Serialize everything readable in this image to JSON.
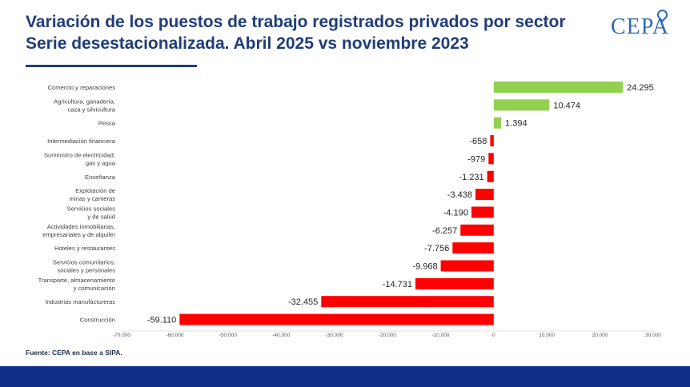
{
  "header": {
    "title_line1": "Variación de los puestos de trabajo registrados privados por sector",
    "title_line2": "Serie desestacionalizada. Abril 2025 vs noviembre 2023",
    "logo_text": "CEPA"
  },
  "footer": {
    "source": "Fuente: CEPA en base a SIPA."
  },
  "colors": {
    "positive": "#92d050",
    "negative": "#ff0000",
    "title": "#1f3d7a",
    "footer_bar": "#0f2f88"
  },
  "chart_data": {
    "type": "bar",
    "orientation": "horizontal",
    "title": "Variación de los puestos de trabajo registrados privados por sector",
    "subtitle": "Serie desestacionalizada. Abril 2025 vs noviembre 2023",
    "categories": [
      [
        "Comercio y reparaciones"
      ],
      [
        "Agricultura, ganadería,",
        "caza y silvicultura"
      ],
      [
        "Pesca"
      ],
      [
        "Intermediación financiera"
      ],
      [
        "Suministro de electricidad,",
        "gas y agua"
      ],
      [
        "Enseñanza"
      ],
      [
        "Explotación de",
        "minas y canteras"
      ],
      [
        "Servicios sociales",
        "y de salud"
      ],
      [
        "Actividades inmobiliarias,",
        "empresariales y de alquiler"
      ],
      [
        "Hoteles y restaurantes"
      ],
      [
        "Servicios comunitarios,",
        "sociales y personales"
      ],
      [
        "Transporte, almacenamiento",
        "y comunicación"
      ],
      [
        "Industrias manufactureras"
      ],
      [
        "Construcción"
      ]
    ],
    "values": [
      24295,
      10474,
      1394,
      -658,
      -979,
      -1231,
      -3438,
      -4190,
      -6257,
      -7756,
      -9968,
      -14731,
      -32455,
      -59110
    ],
    "data_labels": [
      "24.295",
      "10.474",
      "1.394",
      "-658",
      "-979",
      "-1.231",
      "-3.438",
      "-4.190",
      "-6.257",
      "-7.756",
      "-9.968",
      "-14.731",
      "-32.455",
      "-59.110"
    ],
    "xlim": [
      -70000,
      30000
    ],
    "xticks": [
      -70000,
      -60000,
      -50000,
      -40000,
      -30000,
      -20000,
      -10000,
      0,
      10000,
      20000,
      30000
    ],
    "xtick_labels": [
      "-70.000",
      "-60.000",
      "-50.000",
      "-40.000",
      "-30.000",
      "-20.000",
      "-10.000",
      "0",
      "10.000",
      "20.000",
      "30.000"
    ],
    "grid": false,
    "legend": "none"
  }
}
